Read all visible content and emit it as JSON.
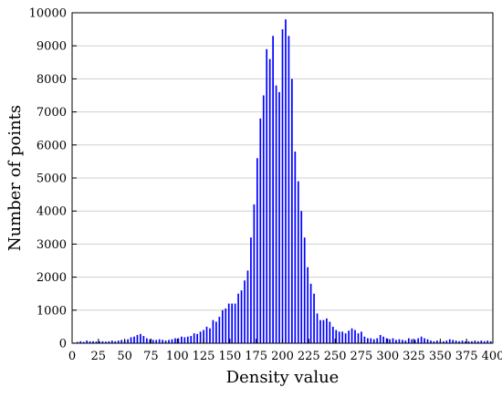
{
  "chart_data": {
    "type": "bar",
    "title": "",
    "xlabel": "Density value",
    "ylabel": "Number of points",
    "xlim": [
      0,
      400
    ],
    "ylim": [
      0,
      10000
    ],
    "xticks": [
      0,
      25,
      50,
      75,
      100,
      125,
      150,
      175,
      200,
      225,
      250,
      275,
      300,
      325,
      350,
      375,
      400
    ],
    "yticks": [
      0,
      1000,
      2000,
      3000,
      4000,
      5000,
      6000,
      7000,
      8000,
      9000,
      10000
    ],
    "grid": "horizontal",
    "bar_color": "#0000ff",
    "series": [
      {
        "x": [
          2,
          5,
          8,
          11,
          14,
          17,
          20,
          23,
          26,
          29,
          32,
          35,
          38,
          41,
          44,
          47,
          50,
          53,
          56,
          59,
          62,
          65,
          68,
          71,
          74,
          77,
          80,
          83,
          86,
          89,
          92,
          95,
          98,
          101,
          104,
          107,
          110,
          113,
          116,
          119,
          122,
          125,
          128,
          131,
          134,
          137,
          140,
          143,
          146,
          149,
          152,
          155,
          158,
          161,
          164,
          167,
          170,
          173,
          176,
          179,
          182,
          185,
          188,
          191,
          194,
          197,
          200,
          203,
          206,
          209,
          212,
          215,
          218,
          221,
          224,
          227,
          230,
          233,
          236,
          239,
          242,
          245,
          248,
          251,
          254,
          257,
          260,
          263,
          266,
          269,
          272,
          275,
          278,
          281,
          284,
          287,
          290,
          293,
          296,
          299,
          302,
          305,
          308,
          311,
          314,
          317,
          320,
          323,
          326,
          329,
          332,
          335,
          338,
          341,
          344,
          347,
          350,
          353,
          356,
          359,
          362,
          365,
          368,
          371,
          374,
          377,
          380,
          383,
          386,
          389,
          392,
          395,
          398
        ],
        "values": [
          20,
          40,
          60,
          40,
          80,
          60,
          60,
          50,
          60,
          60,
          50,
          60,
          80,
          60,
          80,
          100,
          80,
          120,
          180,
          200,
          250,
          280,
          220,
          150,
          120,
          100,
          100,
          120,
          100,
          80,
          100,
          120,
          150,
          150,
          200,
          180,
          200,
          220,
          300,
          280,
          350,
          400,
          500,
          450,
          700,
          650,
          800,
          1000,
          1050,
          1200,
          1200,
          1200,
          1500,
          1600,
          1900,
          2200,
          3200,
          4200,
          5600,
          6800,
          7500,
          8900,
          8600,
          9300,
          7800,
          7600,
          9500,
          9800,
          9300,
          8000,
          5800,
          4900,
          4000,
          3200,
          2300,
          1800,
          1500,
          900,
          700,
          700,
          750,
          650,
          500,
          400,
          350,
          350,
          300,
          380,
          450,
          400,
          300,
          350,
          200,
          150,
          150,
          120,
          150,
          250,
          200,
          150,
          120,
          150,
          100,
          120,
          100,
          80,
          150,
          120,
          100,
          150,
          200,
          150,
          120,
          80,
          60,
          80,
          60,
          60,
          80,
          120,
          100,
          80,
          60,
          80,
          60,
          60,
          60,
          80,
          60,
          80,
          60,
          80,
          60
        ]
      }
    ]
  }
}
